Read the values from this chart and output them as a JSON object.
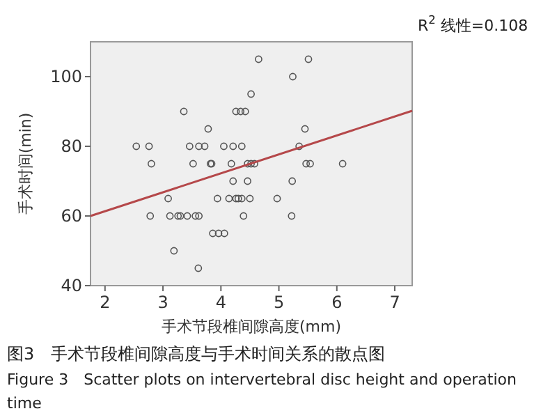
{
  "chart_data": {
    "type": "scatter",
    "xlabel": "手术节段椎间隙高度(mm)",
    "ylabel": "手术时间(min)",
    "xlim": [
      1.75,
      7.3
    ],
    "ylim": [
      40,
      110
    ],
    "xticks": [
      2,
      3,
      4,
      5,
      6,
      7
    ],
    "yticks": [
      40,
      60,
      80,
      100
    ],
    "marker": "circle",
    "grid": false,
    "series": [
      {
        "color": "#555555",
        "x": [
          2.54,
          2.76,
          2.8,
          3.36,
          3.46,
          3.52,
          3.62,
          3.72,
          3.78,
          3.82,
          3.84,
          4.05,
          4.21,
          4.36,
          4.18,
          4.26,
          4.34,
          4.42,
          4.52,
          4.65,
          5.51,
          5.24,
          4.46,
          4.52,
          4.58,
          4.21,
          4.46,
          3.09,
          3.94,
          4.14,
          4.26,
          4.3,
          4.36,
          4.5,
          4.97,
          5.23,
          2.78,
          3.12,
          3.26,
          3.3,
          3.42,
          3.56,
          3.62,
          4.39,
          5.22,
          3.86,
          3.96,
          4.06,
          3.19,
          3.61,
          5.45,
          5.35,
          5.47,
          5.54,
          6.1
        ],
        "values": [
          80,
          80,
          75,
          90,
          80,
          75,
          80,
          80,
          85,
          75,
          75,
          80,
          80,
          80,
          75,
          90,
          90,
          90,
          95,
          105,
          105,
          100,
          75,
          75,
          75,
          70,
          70,
          65,
          65,
          65,
          65,
          65,
          65,
          65,
          65,
          70,
          60,
          60,
          60,
          60,
          60,
          60,
          60,
          60,
          60,
          55,
          55,
          55,
          50,
          45,
          85,
          80,
          75,
          75,
          75
        ]
      },
      {
        "type": "line",
        "color": "#b5484a",
        "marker": "none",
        "x": [
          1.75,
          7.3
        ],
        "values": [
          60,
          90.2
        ]
      }
    ],
    "annotations": [
      "R$^{2}$ 线性=0.108",
      "图3　手术节段椎间隙高度与手术时间关系的散点图",
      "Figure 3　Scatter plots on intervertebral disc height and operation time"
    ]
  }
}
